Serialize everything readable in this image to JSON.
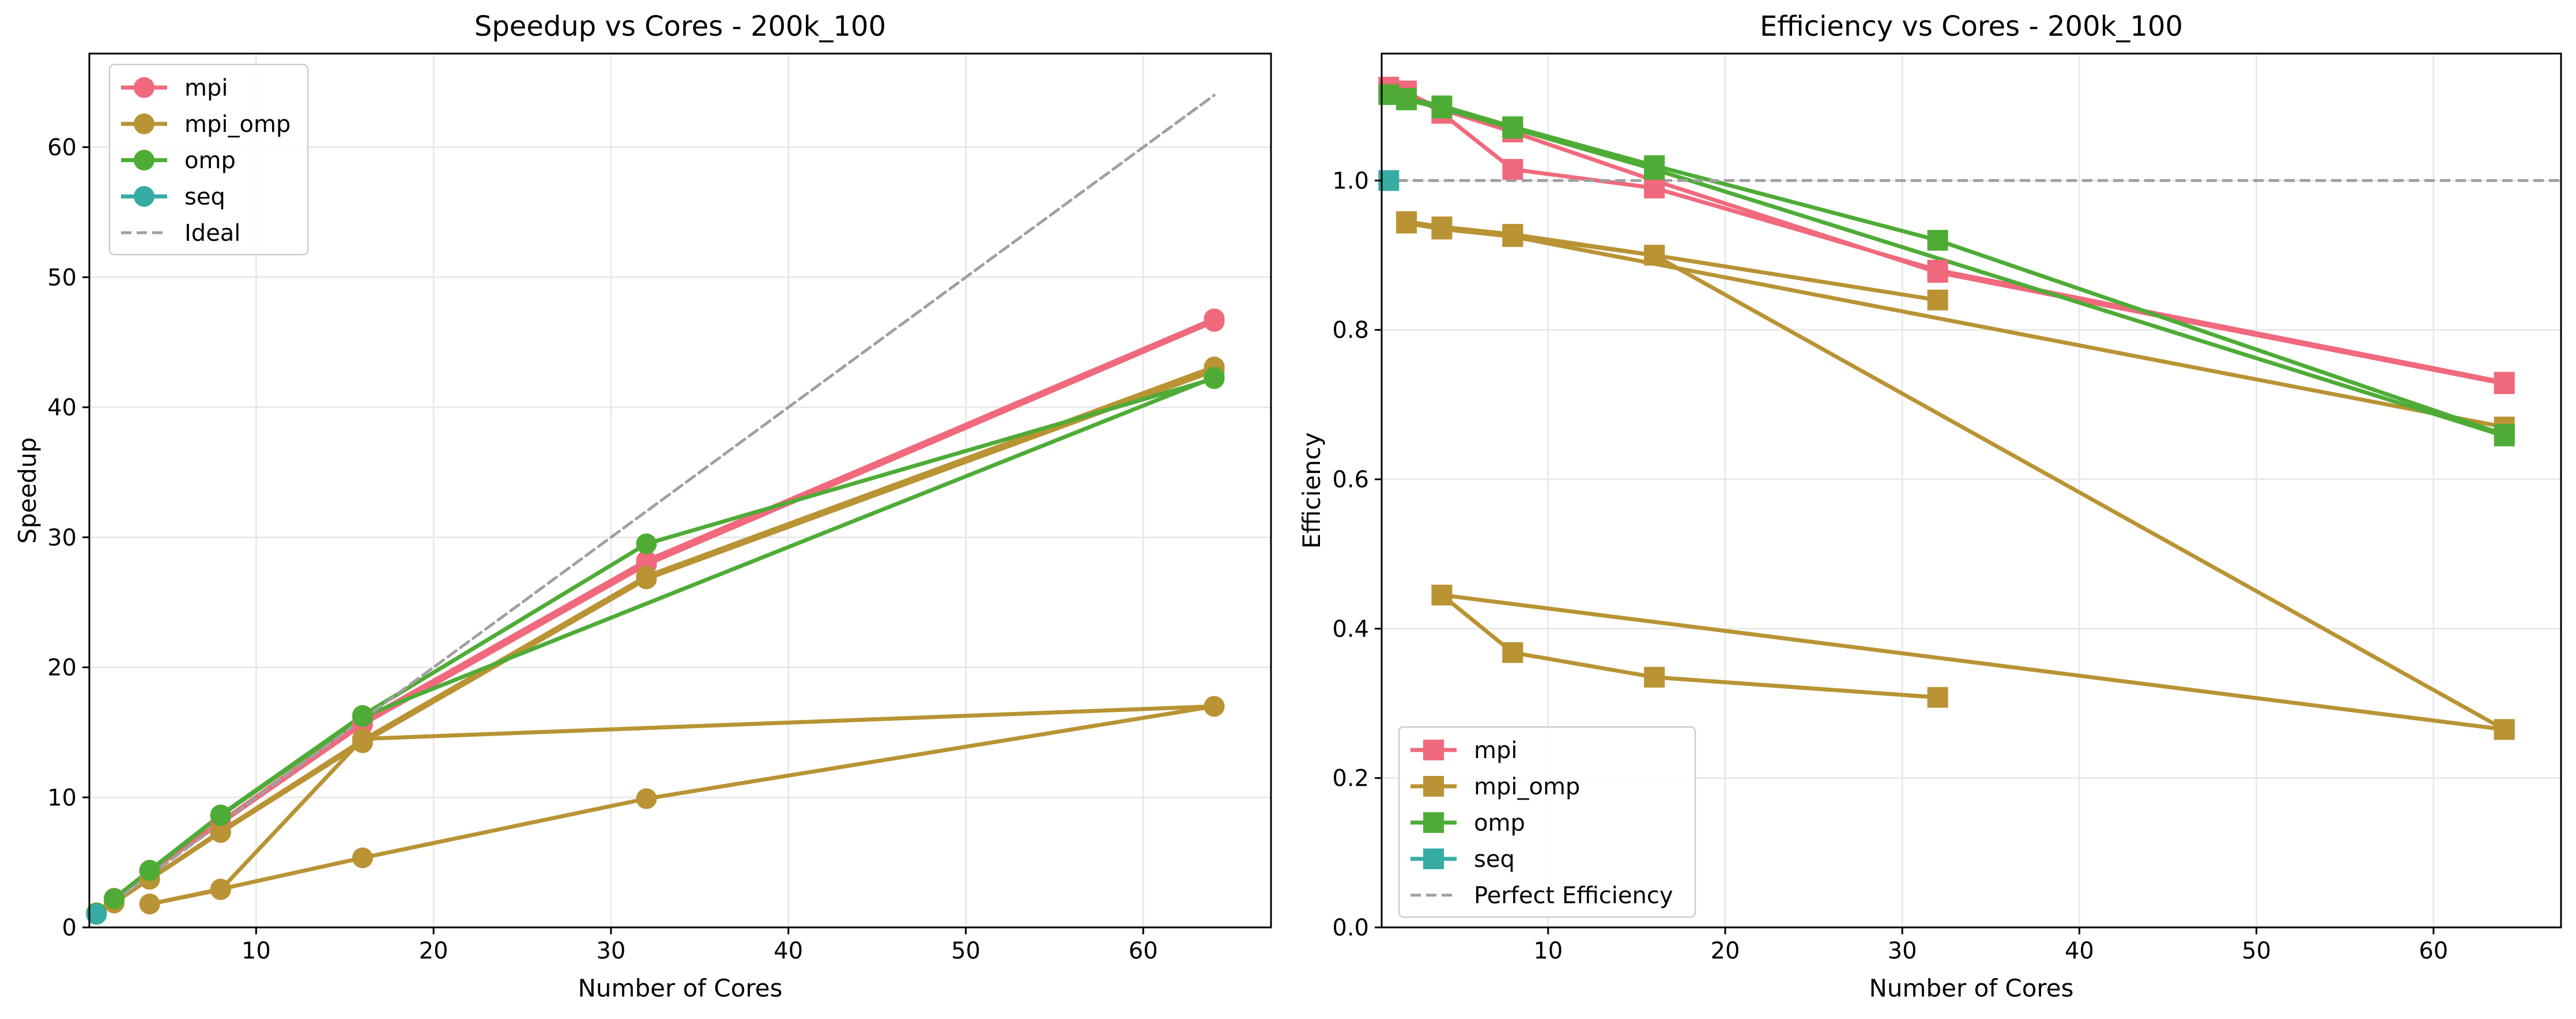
{
  "chart_data": [
    {
      "type": "line",
      "title": "Speedup vs Cores - 200k_100",
      "xlabel": "Number of Cores",
      "ylabel": "Speedup",
      "xlim": [
        0.6,
        67.2
      ],
      "ylim": [
        0,
        67.2
      ],
      "xticks": [
        10,
        20,
        30,
        40,
        50,
        60
      ],
      "yticks": [
        0,
        10,
        20,
        30,
        40,
        50,
        60
      ],
      "grid": true,
      "legend_position": "top-left",
      "legend": [
        "mpi",
        "mpi_omp",
        "omp",
        "seq",
        "Ideal"
      ],
      "marker": "circle",
      "series": [
        {
          "name": "mpi",
          "color": "#f0697c",
          "segments": [
            [
              [
                1,
                1.12
              ],
              [
                2,
                2.24
              ],
              [
                4,
                4.36
              ],
              [
                8,
                8.1
              ],
              [
                16,
                15.9
              ],
              [
                32,
                28.2
              ],
              [
                64,
                46.8
              ]
            ],
            [
              [
                2,
                2.2
              ],
              [
                4,
                4.3
              ],
              [
                8,
                8.0
              ],
              [
                16,
                15.6
              ],
              [
                32,
                27.9
              ],
              [
                64,
                46.6
              ]
            ]
          ]
        },
        {
          "name": "mpi_omp",
          "color": "#b99334",
          "segments": [
            [
              [
                2,
                1.88
              ],
              [
                4,
                3.74
              ],
              [
                8,
                7.4
              ],
              [
                16,
                14.4
              ],
              [
                32,
                27.0
              ],
              [
                64,
                43.1
              ]
            ],
            [
              [
                4,
                3.7
              ],
              [
                8,
                7.3
              ],
              [
                16,
                14.2
              ],
              [
                32,
                26.8
              ],
              [
                64,
                42.8
              ]
            ],
            [
              [
                4,
                1.8
              ],
              [
                8,
                2.95
              ],
              [
                16,
                5.35
              ],
              [
                32,
                9.9
              ],
              [
                64,
                17.0
              ]
            ],
            [
              [
                4,
                1.8
              ],
              [
                8,
                2.9
              ],
              [
                16,
                14.5
              ],
              [
                64,
                17.0
              ]
            ]
          ]
        },
        {
          "name": "omp",
          "color": "#4eac36",
          "segments": [
            [
              [
                1,
                1.12
              ],
              [
                2,
                2.22
              ],
              [
                4,
                4.4
              ],
              [
                8,
                8.65
              ],
              [
                16,
                16.3
              ],
              [
                32,
                29.5
              ],
              [
                64,
                42.2
              ]
            ],
            [
              [
                2,
                2.2
              ],
              [
                4,
                4.35
              ],
              [
                8,
                8.6
              ],
              [
                16,
                16.2
              ],
              [
                64,
                42.3
              ]
            ]
          ]
        },
        {
          "name": "seq",
          "color": "#36aca4",
          "segments": [
            [
              [
                1,
                1.0
              ]
            ]
          ]
        },
        {
          "name": "Ideal",
          "color": "#a0a0a0",
          "dashed": true,
          "segments": [
            [
              [
                1,
                1
              ],
              [
                64,
                64
              ]
            ]
          ]
        }
      ]
    },
    {
      "type": "line",
      "title": "Efficiency vs Cores - 200k_100",
      "xlabel": "Number of Cores",
      "ylabel": "Efficiency",
      "xlim": [
        0.6,
        67.2
      ],
      "ylim": [
        0,
        1.17
      ],
      "xticks": [
        10,
        20,
        30,
        40,
        50,
        60
      ],
      "yticks": [
        0.0,
        0.2,
        0.4,
        0.6,
        0.8,
        1.0
      ],
      "grid": true,
      "legend_position": "bottom-left",
      "legend": [
        "mpi",
        "mpi_omp",
        "omp",
        "seq",
        "Perfect Efficiency"
      ],
      "marker": "square",
      "series": [
        {
          "name": "mpi",
          "color": "#f0697c",
          "segments": [
            [
              [
                1,
                1.125
              ],
              [
                2,
                1.12
              ],
              [
                4,
                1.09
              ],
              [
                8,
                1.015
              ],
              [
                16,
                0.99
              ],
              [
                32,
                0.88
              ],
              [
                64,
                0.73
              ]
            ],
            [
              [
                2,
                1.118
              ],
              [
                4,
                1.095
              ],
              [
                8,
                1.065
              ],
              [
                16,
                1.0
              ],
              [
                32,
                0.877
              ],
              [
                64,
                0.728
              ]
            ]
          ]
        },
        {
          "name": "mpi_omp",
          "color": "#b99334",
          "segments": [
            [
              [
                2,
                0.945
              ],
              [
                4,
                0.938
              ],
              [
                8,
                0.928
              ],
              [
                16,
                0.9
              ],
              [
                32,
                0.84
              ]
            ],
            [
              [
                2,
                0.943
              ],
              [
                4,
                0.935
              ],
              [
                8,
                0.925
              ],
              [
                64,
                0.67
              ]
            ],
            [
              [
                4,
                0.937
              ],
              [
                8,
                0.926
              ],
              [
                16,
                0.9
              ],
              [
                64,
                0.265
              ]
            ],
            [
              [
                4,
                0.445
              ],
              [
                8,
                0.368
              ],
              [
                16,
                0.335
              ],
              [
                32,
                0.308
              ]
            ],
            [
              [
                4,
                0.445
              ],
              [
                64,
                0.265
              ]
            ]
          ]
        },
        {
          "name": "omp",
          "color": "#4eac36",
          "segments": [
            [
              [
                1,
                1.115
              ],
              [
                2,
                1.11
              ],
              [
                4,
                1.1
              ],
              [
                8,
                1.072
              ],
              [
                16,
                1.02
              ],
              [
                32,
                0.92
              ],
              [
                64,
                0.66
              ]
            ],
            [
              [
                2,
                1.108
              ],
              [
                4,
                1.097
              ],
              [
                8,
                1.07
              ],
              [
                16,
                1.015
              ],
              [
                64,
                0.658
              ]
            ]
          ]
        },
        {
          "name": "seq",
          "color": "#36aca4",
          "segments": [
            [
              [
                1,
                1.0
              ]
            ]
          ]
        },
        {
          "name": "Perfect Efficiency",
          "color": "#a0a0a0",
          "dashed": true,
          "horizontal": 1.0
        }
      ]
    }
  ]
}
